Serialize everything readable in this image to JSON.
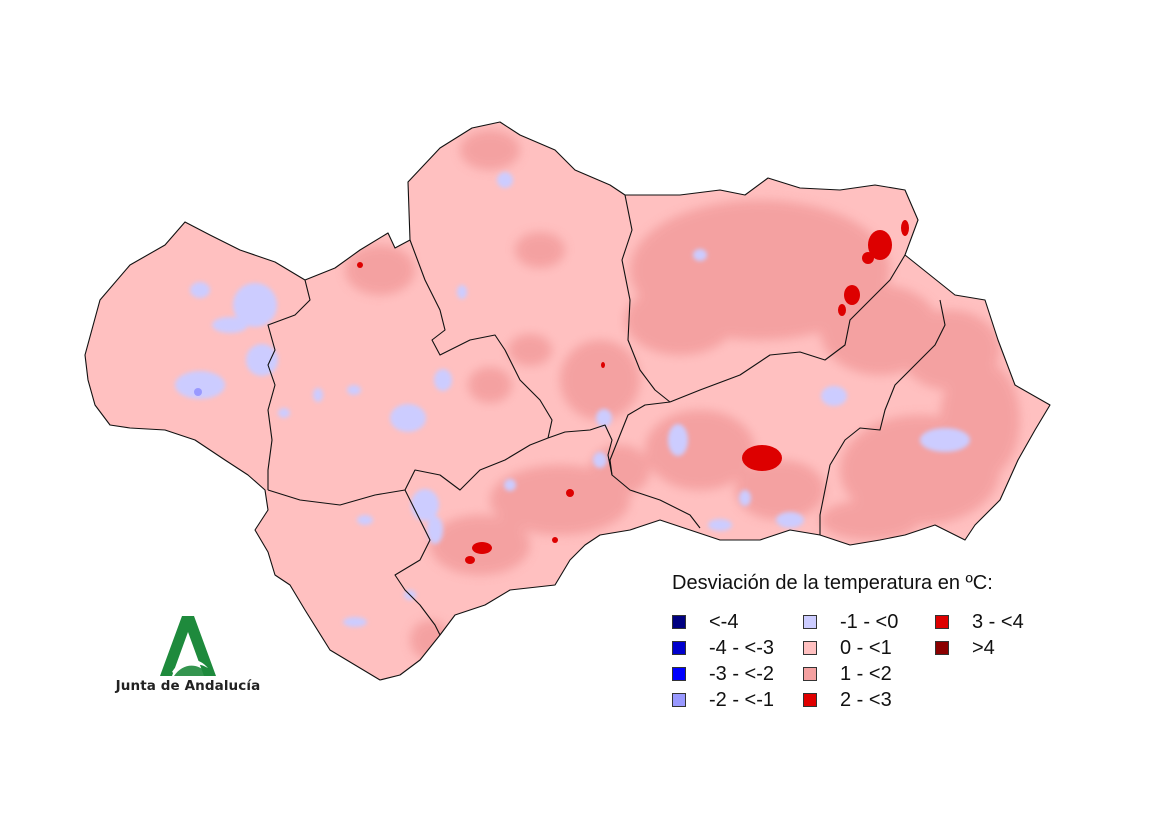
{
  "legend": {
    "title": "Desviación de la temperatura en ºC:",
    "items": [
      {
        "label": "<-4",
        "color": "#000080"
      },
      {
        "label": "-4 - <-3",
        "color": "#0000cd"
      },
      {
        "label": "-3 - <-2",
        "color": "#0000ff"
      },
      {
        "label": "-2 - <-1",
        "color": "#9999ff"
      },
      {
        "label": "-1 - <0",
        "color": "#ccccff"
      },
      {
        "label": "0 - <1",
        "color": "#ffc0c0"
      },
      {
        "label": "1 - <2",
        "color": "#f4a0a0"
      },
      {
        "label": "2 - <3",
        "color": "#e00000"
      },
      {
        "label": "3 - <4",
        "color": "#dd0000"
      },
      {
        "label": ">4",
        "color": "#8b0000"
      }
    ]
  },
  "logo": {
    "text": "Junta de Andalucía",
    "color": "#1e8a3c"
  },
  "map": {
    "base_color": "#ffc0c0",
    "border_color": "#111111"
  }
}
